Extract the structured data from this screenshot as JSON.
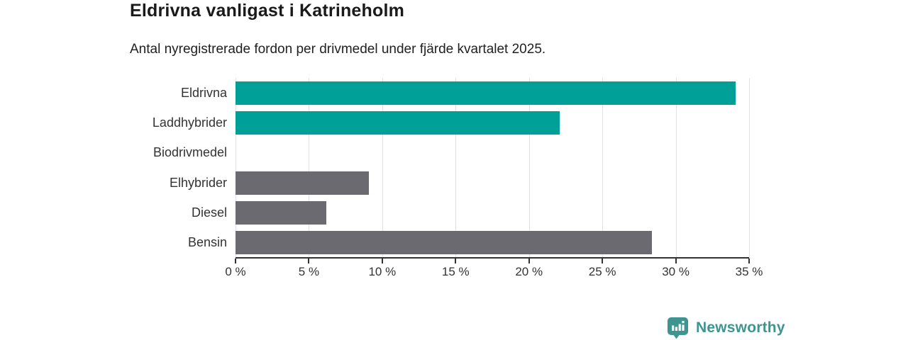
{
  "header": {
    "title": "Eldrivna vanligast i Katrineholm",
    "subtitle": "Antal nyregistrerade fordon per drivmedel under fjärde kvartalet 2025."
  },
  "chart_data": {
    "type": "bar",
    "orientation": "horizontal",
    "title": "Eldrivna vanligast i Katrineholm",
    "subtitle": "Antal nyregistrerade fordon per drivmedel under fjärde kvartalet 2025.",
    "categories": [
      "Eldrivna",
      "Laddhybrider",
      "Biodrivmedel",
      "Elhybrider",
      "Diesel",
      "Bensin"
    ],
    "values": [
      34.1,
      22.1,
      0,
      9.1,
      6.2,
      28.4
    ],
    "unit": "%",
    "xlabel": "",
    "ylabel": "",
    "xlim": [
      0,
      35
    ],
    "tick_values": [
      0,
      5,
      10,
      15,
      20,
      25,
      30,
      35
    ],
    "tick_labels": [
      "0 %",
      "5 %",
      "10 %",
      "15 %",
      "20 %",
      "25 %",
      "30 %",
      "35 %"
    ],
    "grid": true,
    "legend": "none",
    "bar_colors": [
      "#00a098",
      "#00a098",
      "#6b6a70",
      "#6b6a70",
      "#6b6a70",
      "#6b6a70"
    ],
    "accent_color": "#00a098",
    "default_color": "#6b6a70",
    "gridline_color": "#e2e2e2",
    "axis_color": "#333333"
  },
  "footer": {
    "brand": "Newsworthy",
    "brand_color": "#3e948f",
    "logo_icon": "newsworthy-bubble-bar-chart-icon"
  }
}
